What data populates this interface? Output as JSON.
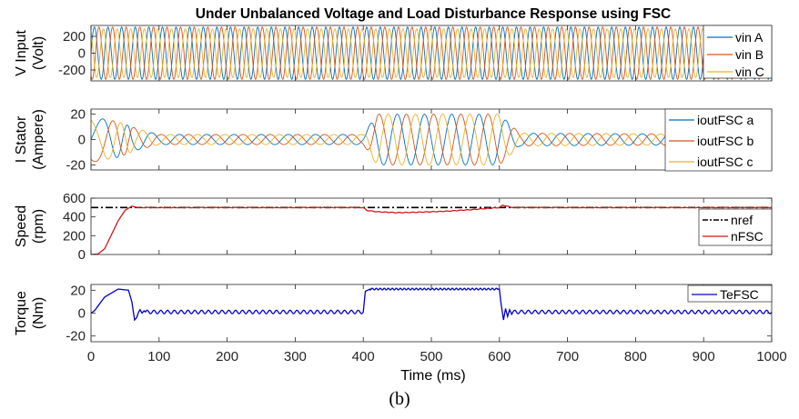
{
  "figure": {
    "title": "Under Unbalanced Voltage and Load Disturbance Response using FSC",
    "caption": "(b)",
    "xlabel": "Time (ms)"
  },
  "chart_data": [
    {
      "type": "line",
      "title": "Under Unbalanced Voltage and Load Disturbance Response using FSC",
      "ylabel": [
        "V Input",
        "(Volt)"
      ],
      "xlim": [
        0,
        1000
      ],
      "ylim": [
        -330,
        330
      ],
      "yticks": [
        200,
        0,
        -200
      ],
      "xticks": [
        0,
        100,
        200,
        300,
        400,
        500,
        600,
        700,
        800,
        900,
        1000
      ],
      "show_xticklabels": false,
      "grid": false,
      "legend_position": "right",
      "series": [
        {
          "name": "vin A",
          "color": "#0072BD",
          "signal": "sine",
          "freq_hz": 50,
          "amplitude": 311,
          "phase_deg": 0
        },
        {
          "name": "vin B",
          "color": "#D95319",
          "signal": "sine",
          "freq_hz": 50,
          "amplitude": 311,
          "phase_deg": -120
        },
        {
          "name": "vin C",
          "color": "#EDB120",
          "signal": "sine",
          "freq_hz": 50,
          "amplitude": 290,
          "phase_deg": 120
        }
      ]
    },
    {
      "type": "line",
      "ylabel": [
        "I Stator",
        "(Ampere)"
      ],
      "xlim": [
        0,
        1000
      ],
      "ylim": [
        -24,
        24
      ],
      "yticks": [
        20,
        0,
        -20
      ],
      "xticks": [
        0,
        100,
        200,
        300,
        400,
        500,
        600,
        700,
        800,
        900,
        1000
      ],
      "show_xticklabels": false,
      "grid": false,
      "legend_position": "right",
      "envelope": {
        "t": [
          0,
          40,
          70,
          100,
          400,
          420,
          600,
          630,
          1000
        ],
        "a": [
          18,
          14,
          8,
          4,
          4,
          20,
          20,
          5,
          4
        ]
      },
      "series": [
        {
          "name": "ioutFSC a",
          "color": "#0072BD",
          "signal": "current",
          "phase_deg": 0
        },
        {
          "name": "ioutFSC b",
          "color": "#D95319",
          "signal": "current",
          "phase_deg": -120
        },
        {
          "name": "ioutFSC c",
          "color": "#EDB120",
          "signal": "current",
          "phase_deg": 120
        }
      ]
    },
    {
      "type": "line",
      "ylabel": [
        "Speed",
        "(rpm)"
      ],
      "xlim": [
        0,
        1000
      ],
      "ylim": [
        0,
        600
      ],
      "yticks": [
        600,
        400,
        200,
        0
      ],
      "xticks": [
        0,
        100,
        200,
        300,
        400,
        500,
        600,
        700,
        800,
        900,
        1000
      ],
      "show_xticklabels": false,
      "grid": false,
      "legend_position": "right",
      "series": [
        {
          "name": "nref",
          "color": "#000000",
          "dash": "8,3,2,3",
          "x": [
            0,
            1000
          ],
          "y": [
            500,
            500
          ]
        },
        {
          "name": "nFSC",
          "color": "#D01818",
          "x": [
            0,
            10,
            20,
            30,
            40,
            50,
            60,
            65,
            70,
            90,
            400,
            405,
            420,
            450,
            480,
            520,
            560,
            600,
            605,
            612,
            620,
            1000
          ],
          "y": [
            0,
            5,
            60,
            210,
            360,
            470,
            515,
            505,
            500,
            500,
            500,
            470,
            455,
            445,
            450,
            460,
            478,
            500,
            525,
            512,
            500,
            500
          ]
        }
      ]
    },
    {
      "type": "line",
      "ylabel": [
        "Torque",
        "(Nm)"
      ],
      "xlabel": "Time (ms)",
      "xlim": [
        0,
        1000
      ],
      "ylim": [
        -25,
        25
      ],
      "yticks": [
        20,
        0,
        -20
      ],
      "xticks": [
        0,
        100,
        200,
        300,
        400,
        500,
        600,
        700,
        800,
        900,
        1000
      ],
      "show_xticklabels": true,
      "grid": false,
      "legend_position": "top-right",
      "series": [
        {
          "name": "TeFSC",
          "color": "#0000CC",
          "signal": "torque",
          "x": [
            0,
            5,
            20,
            40,
            55,
            60,
            64,
            67,
            70,
            72,
            75,
            78,
            80,
            400,
            403,
            410,
            600,
            602,
            606,
            609,
            612,
            615,
            618,
            620,
            1000
          ],
          "y": [
            0,
            2,
            14,
            21,
            20,
            10,
            -6,
            -4,
            1,
            3,
            0,
            2,
            1,
            1,
            19,
            21,
            21,
            10,
            -6,
            4,
            -3,
            3,
            -1,
            1,
            1
          ],
          "ripple_amp": 1.5,
          "ripple_freq_hz": 100
        }
      ]
    }
  ]
}
